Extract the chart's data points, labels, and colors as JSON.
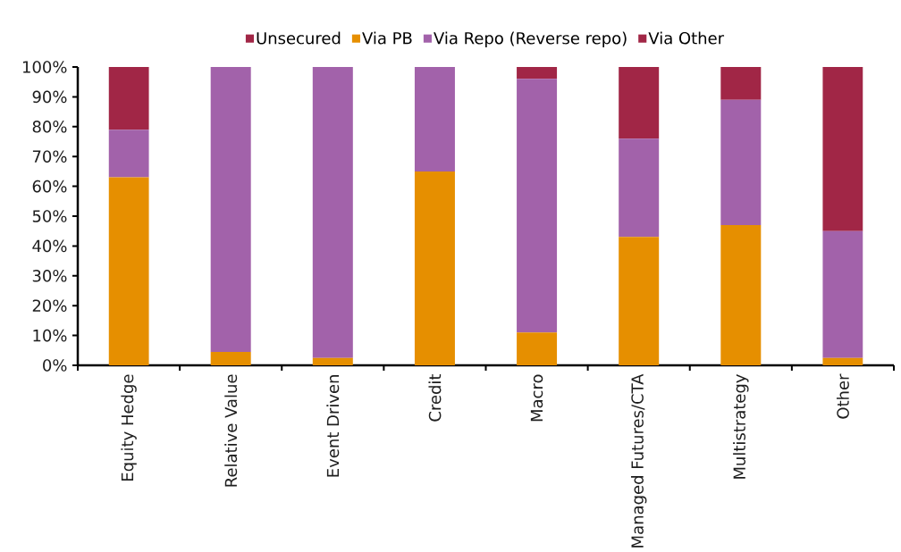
{
  "chart_data": {
    "type": "bar",
    "stacked": true,
    "legend": "top",
    "categories": [
      "Equity Hedge",
      "Relative Value",
      "Event Driven",
      "Credit",
      "Macro",
      "Managed Futures/CTA",
      "Multistrategy",
      "Other"
    ],
    "series": [
      {
        "name": "Unsecured",
        "color": "#a12646",
        "values": [
          0,
          0,
          0,
          0,
          0,
          0,
          0,
          0
        ]
      },
      {
        "name": "Via PB",
        "color": "#e68f00",
        "values": [
          63,
          4.5,
          2.5,
          65,
          11,
          43,
          47,
          2.5
        ]
      },
      {
        "name": "Via Repo (Reverse repo)",
        "color": "#a262aa",
        "values": [
          16,
          95.5,
          97.5,
          35,
          85,
          33,
          42,
          42.5
        ]
      },
      {
        "name": "Via Other",
        "color": "#a12646",
        "values": [
          21,
          0,
          0,
          0,
          4,
          24,
          11,
          55
        ]
      }
    ],
    "ylim": [
      0,
      100
    ],
    "yticks": [
      {
        "value": 0,
        "label": "0%"
      },
      {
        "value": 10,
        "label": "10%"
      },
      {
        "value": 20,
        "label": "20%"
      },
      {
        "value": 30,
        "label": "30%"
      },
      {
        "value": 40,
        "label": "40%"
      },
      {
        "value": 50,
        "label": "50%"
      },
      {
        "value": 60,
        "label": "60%"
      },
      {
        "value": 70,
        "label": "70%"
      },
      {
        "value": 80,
        "label": "80%"
      },
      {
        "value": 90,
        "label": "90%"
      },
      {
        "value": 100,
        "label": "100%"
      }
    ]
  }
}
